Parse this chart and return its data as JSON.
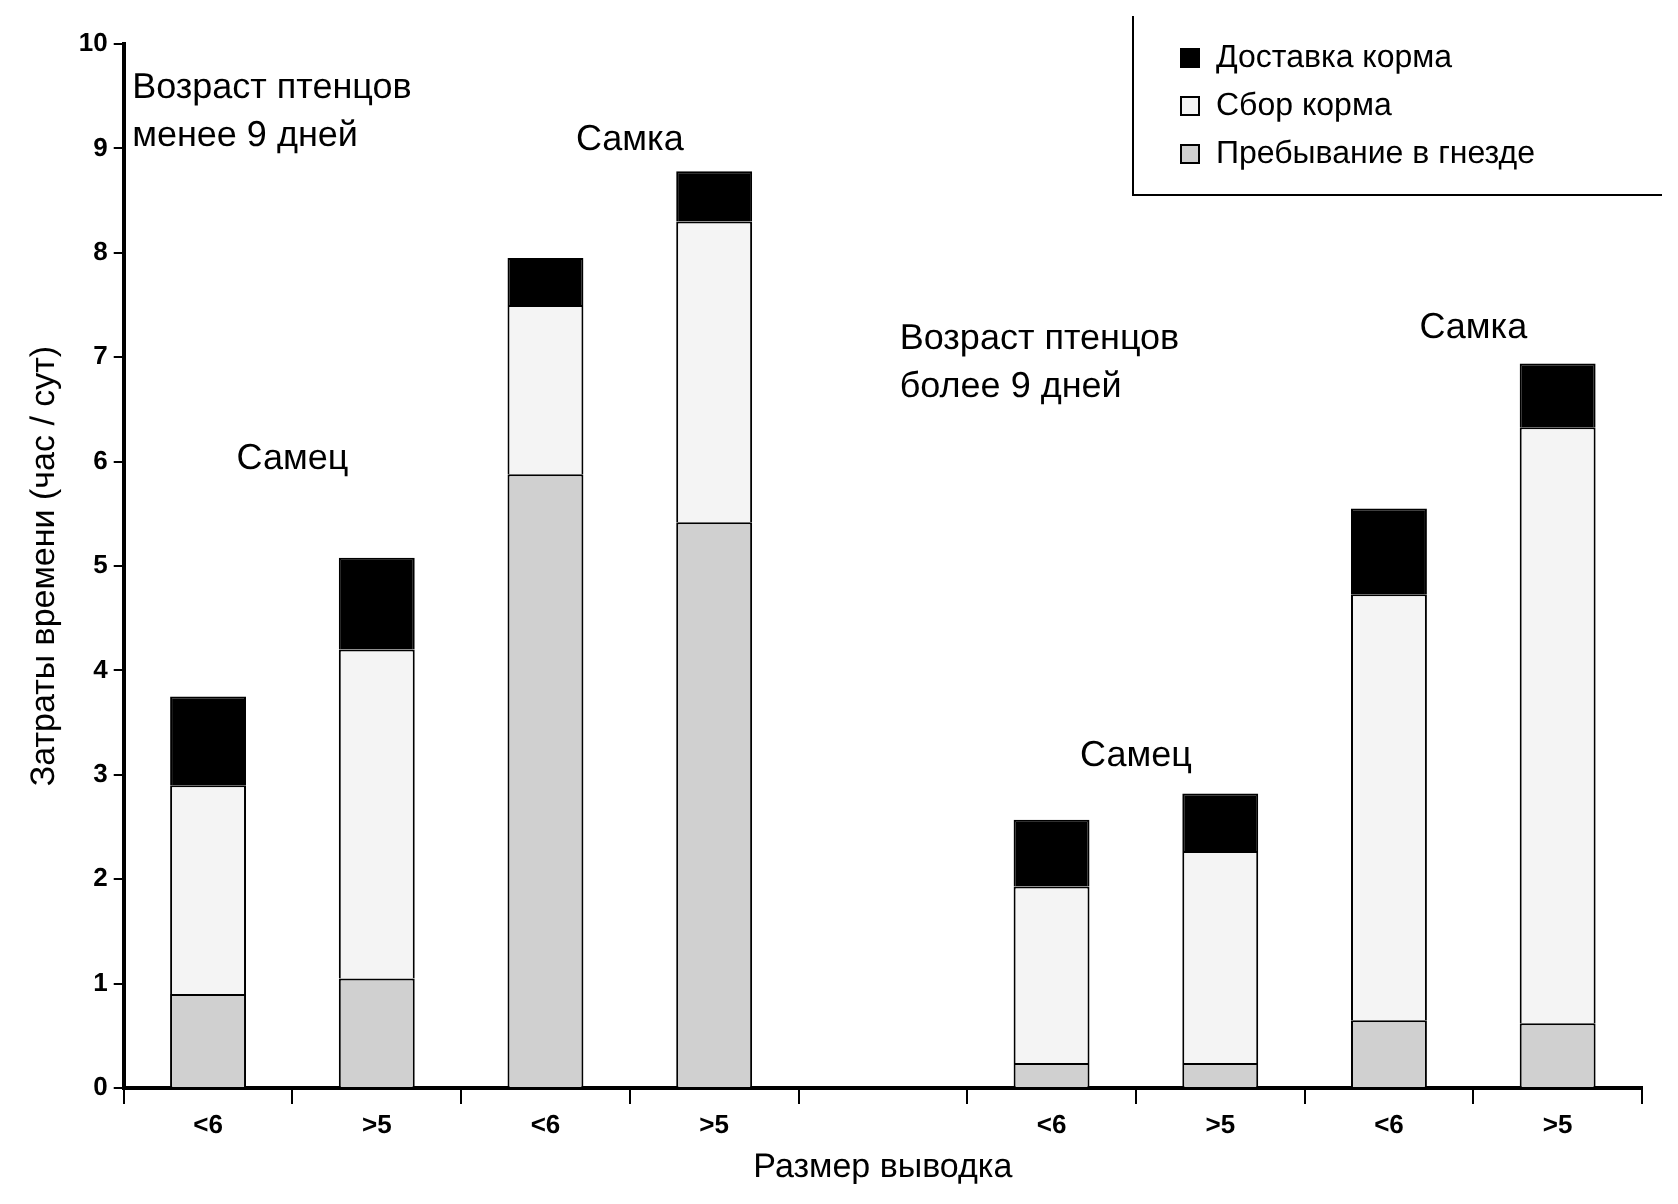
{
  "chart_data": {
    "type": "bar",
    "stacked": true,
    "xlabel": "Размер выводка",
    "ylabel": "Затраты времени (час / сут)",
    "categories": [
      "<6",
      ">5",
      "<6",
      ">5",
      null,
      "<6",
      ">5",
      "<6",
      ">5"
    ],
    "series": [
      {
        "name": "Пребывание в гнезде",
        "color": "#d0d0d0",
        "values": [
          0.9,
          1.05,
          5.88,
          5.42,
          null,
          0.24,
          0.24,
          0.65,
          0.62
        ]
      },
      {
        "name": "Сбор корма",
        "color": "#f4f4f4",
        "values": [
          2.0,
          3.15,
          1.62,
          2.88,
          null,
          1.69,
          2.03,
          4.08,
          5.71
        ]
      },
      {
        "name": "Доставка корма",
        "color": "#000000",
        "values": [
          0.85,
          0.88,
          0.45,
          0.48,
          null,
          0.64,
          0.55,
          0.82,
          0.61
        ]
      }
    ],
    "ylim": [
      0,
      10
    ],
    "yticks": [
      0,
      1,
      2,
      3,
      4,
      5,
      6,
      7,
      8,
      9,
      10
    ],
    "grid": false,
    "legend": "top right",
    "annotations": [
      "Возраст птенцов\nменее 9 дней",
      "Самец",
      "Самка",
      "Возраст птенцов\nболее 9 дней",
      "Самец",
      "Самка"
    ]
  }
}
